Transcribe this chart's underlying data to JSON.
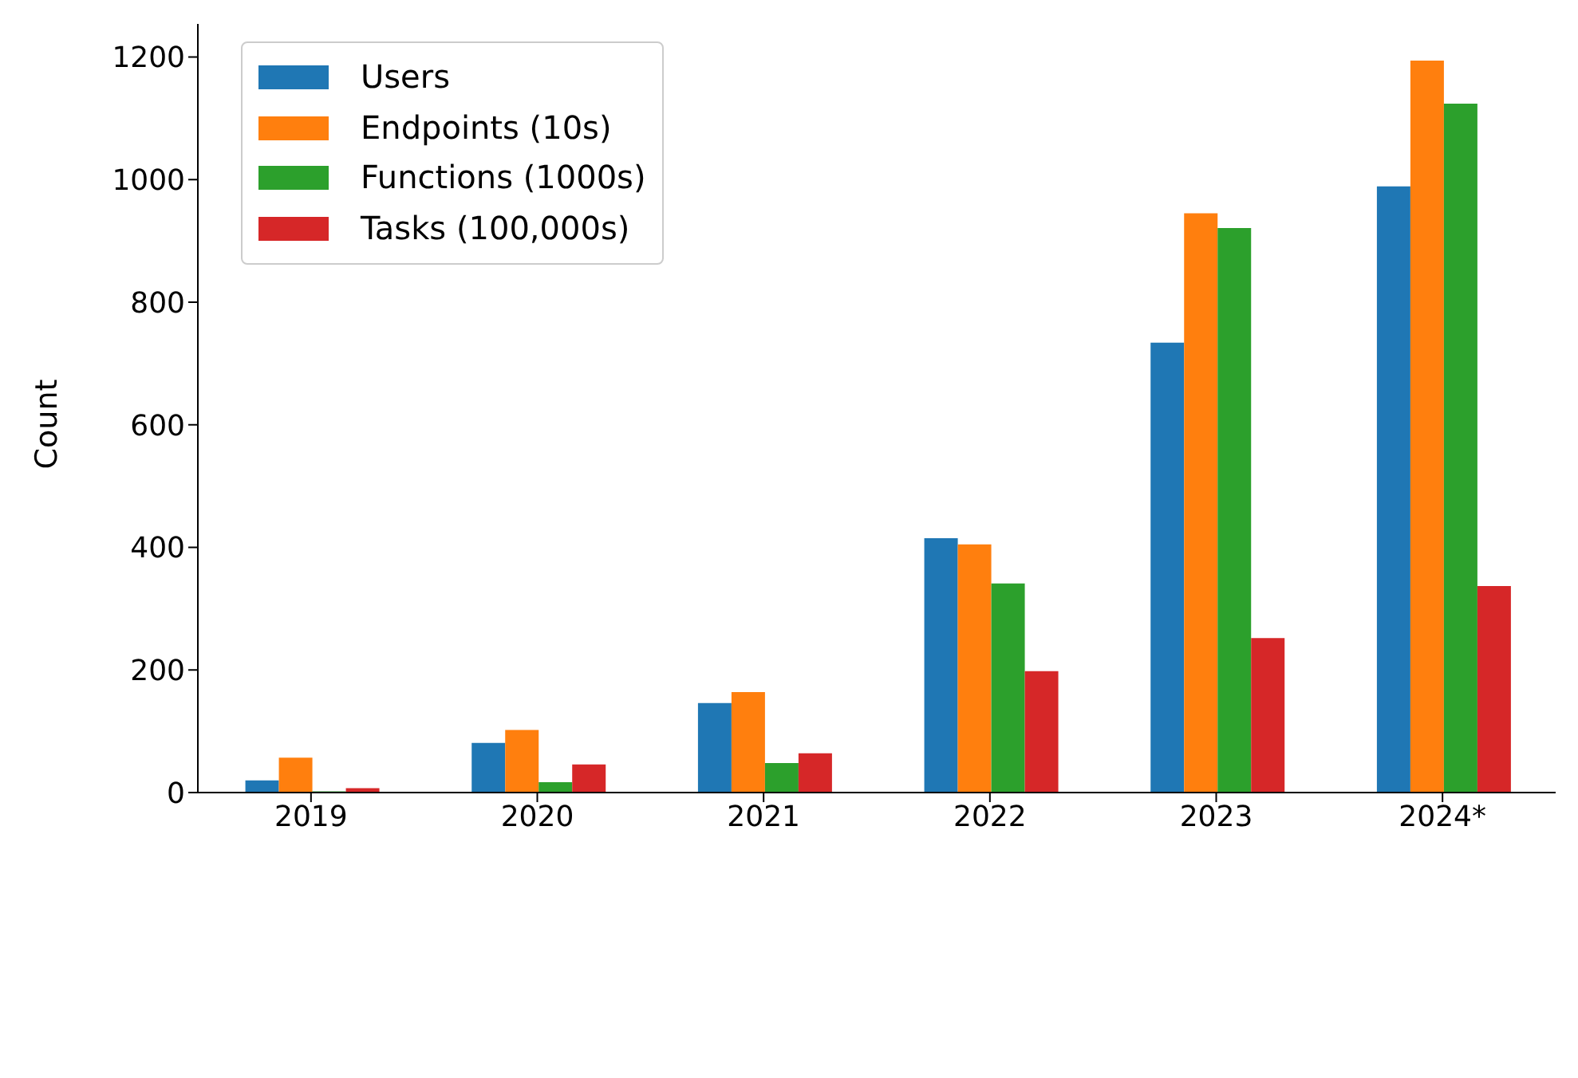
{
  "chart_data": {
    "type": "bar",
    "ylabel": "Count",
    "categories": [
      "2019",
      "2020",
      "2021",
      "2022",
      "2023",
      "2024*"
    ],
    "series": [
      {
        "name": "Users",
        "color": "#1f77b4",
        "values": [
          20,
          81,
          146,
          415,
          734,
          989
        ]
      },
      {
        "name": "Endpoints (10s)",
        "color": "#ff7f0e",
        "values": [
          57,
          102,
          164,
          405,
          945,
          1194
        ]
      },
      {
        "name": "Functions (1000s)",
        "color": "#2ca02c",
        "values": [
          2,
          17,
          48,
          341,
          921,
          1124
        ]
      },
      {
        "name": "Tasks (100,000s)",
        "color": "#d62728",
        "values": [
          7,
          46,
          64,
          198,
          252,
          337
        ]
      }
    ],
    "ylim": [
      0,
      1254
    ],
    "yticks": [
      0,
      200,
      400,
      600,
      800,
      1000,
      1200
    ],
    "grid": false,
    "legend": "top left"
  }
}
